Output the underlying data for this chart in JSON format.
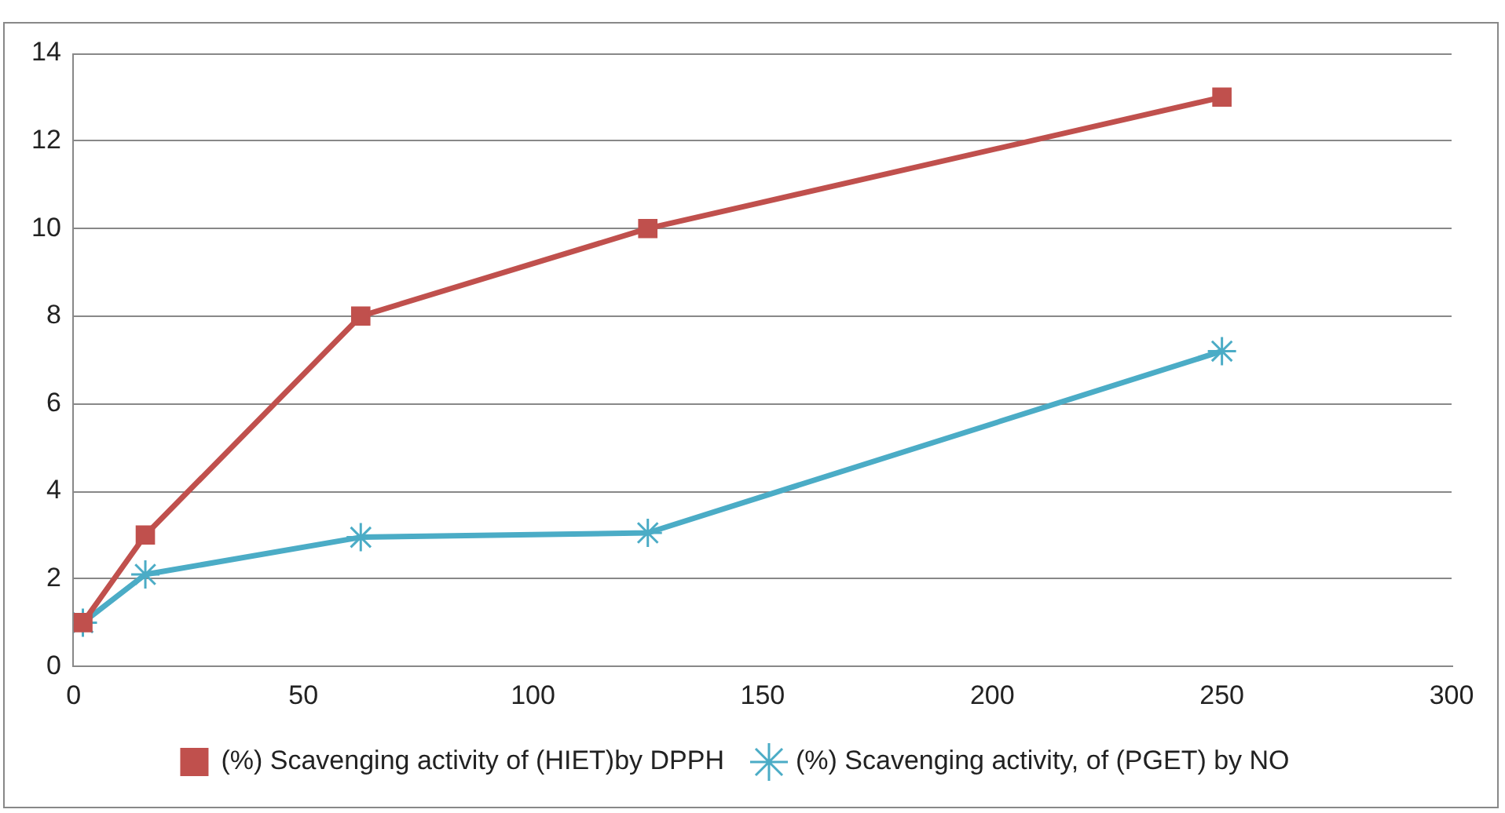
{
  "chart_data": {
    "type": "line",
    "x": [
      2,
      15.6,
      62.5,
      125,
      250
    ],
    "series": [
      {
        "name": "(%) Scavenging activity of (HIET)by DPPH",
        "color": "#c0504d",
        "marker": "square",
        "values": [
          1,
          3,
          8,
          10,
          13
        ]
      },
      {
        "name": "(%) Scavenging activity, of (PGET) by NO",
        "color": "#4bacc6",
        "marker": "cross",
        "values": [
          1,
          2.1,
          2.95,
          3.05,
          7.2
        ]
      }
    ],
    "xlim": [
      0,
      300
    ],
    "xticks": [
      0,
      50,
      100,
      150,
      200,
      250,
      300
    ],
    "ylim": [
      0,
      14
    ],
    "yticks": [
      0,
      2,
      4,
      6,
      8,
      10,
      12,
      14
    ],
    "grid": "y",
    "legend": "bottom",
    "line_style": "solid"
  }
}
